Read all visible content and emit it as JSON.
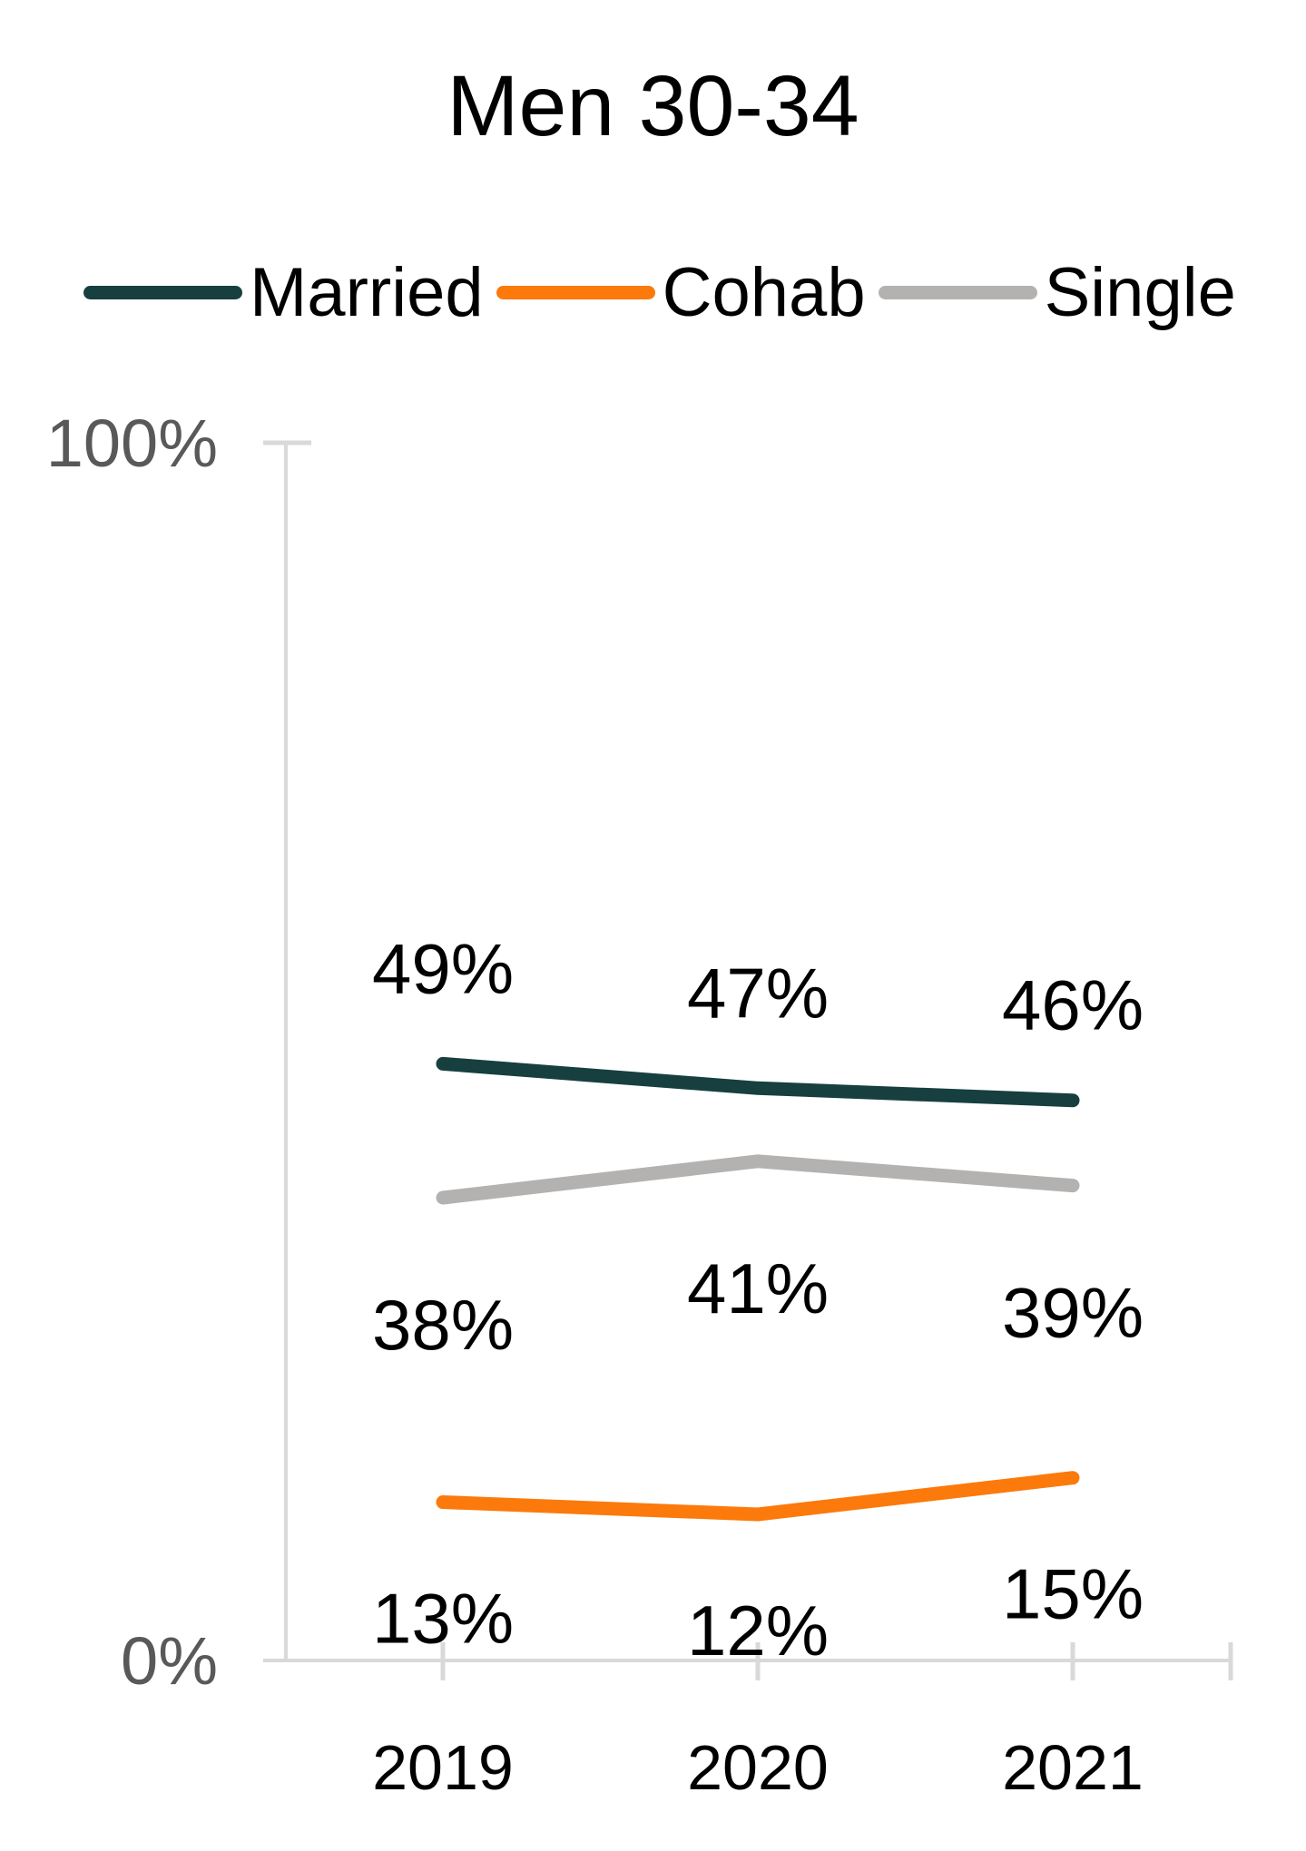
{
  "title": "Men 30-34",
  "colors": {
    "married": "#173f3f",
    "cohab": "#fb7a0b",
    "single": "#b3b2b1",
    "axis": "#d9d9d9",
    "axis_label": "#595959",
    "text": "#000000"
  },
  "legend": [
    {
      "label": "Married",
      "series": "married"
    },
    {
      "label": "Cohab",
      "series": "cohab"
    },
    {
      "label": "Single",
      "series": "single"
    }
  ],
  "y_axis": {
    "top_label": "100%",
    "bottom_label": "0%"
  },
  "chart_data": {
    "type": "line",
    "title": "Men 30-34",
    "categories": [
      "2019",
      "2020",
      "2021"
    ],
    "series": [
      {
        "name": "Married",
        "color_key": "married",
        "values": [
          49,
          47,
          46
        ],
        "label_position": "above"
      },
      {
        "name": "Cohab",
        "color_key": "cohab",
        "values": [
          13,
          12,
          15
        ],
        "label_position": "below"
      },
      {
        "name": "Single",
        "color_key": "single",
        "values": [
          38,
          41,
          39
        ],
        "label_position": "below"
      }
    ],
    "value_suffix": "%",
    "ylim": [
      0,
      100
    ],
    "grid": false,
    "legend_position": "top"
  }
}
